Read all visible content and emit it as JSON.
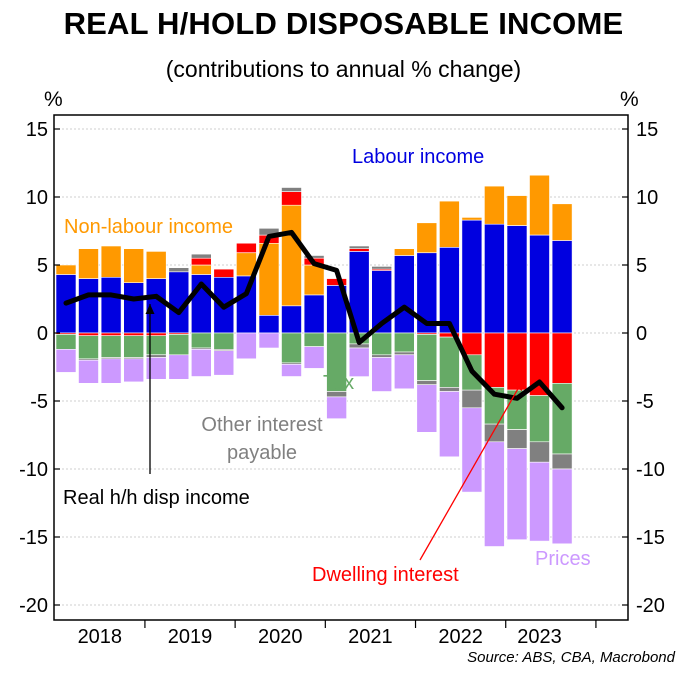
{
  "title": "REAL H/HOLD DISPOSABLE INCOME",
  "subtitle": "(contributions to annual % change)",
  "y_unit_left": "%",
  "y_unit_right": "%",
  "source": "Source: ABS, CBA, Macrobond",
  "colors": {
    "labour": "#0000e0",
    "non_labour": "#ff9900",
    "other_interest": "#808080",
    "tax": "#66aa66",
    "dwelling": "#ff0000",
    "prices": "#cc99ff",
    "line": "#000000"
  },
  "chart_data": {
    "type": "bar",
    "stacked": true,
    "title": "REAL H/HOLD DISPOSABLE INCOME",
    "subtitle": "(contributions to annual % change)",
    "ylabel": "%",
    "ylim": [
      -21,
      16
    ],
    "yticks": [
      15,
      10,
      5,
      0,
      -5,
      -10,
      -15,
      -20
    ],
    "ytick_labels": [
      "15",
      "10",
      "5",
      "0",
      "-5",
      "-10",
      "-15",
      "-20"
    ],
    "x_year_labels": [
      "2018",
      "2019",
      "2020",
      "2021",
      "2022",
      "2023"
    ],
    "quarters": [
      "2018Q1",
      "2018Q2",
      "2018Q3",
      "2018Q4",
      "2019Q1",
      "2019Q2",
      "2019Q3",
      "2019Q4",
      "2020Q1",
      "2020Q2",
      "2020Q3",
      "2020Q4",
      "2021Q1",
      "2021Q2",
      "2021Q3",
      "2021Q4",
      "2022Q1",
      "2022Q2",
      "2022Q3",
      "2022Q4",
      "2023Q1",
      "2023Q2",
      "2023Q3"
    ],
    "series": [
      {
        "name": "Labour income",
        "key": "labour",
        "values": [
          4.3,
          4.0,
          4.1,
          3.7,
          4.0,
          4.5,
          4.3,
          4.1,
          4.2,
          1.3,
          2.0,
          2.8,
          3.5,
          6.0,
          4.6,
          5.7,
          5.9,
          6.3,
          8.3,
          8.0,
          7.9,
          7.2,
          6.8
        ]
      },
      {
        "name": "Non-labour income",
        "key": "non_labour",
        "values": [
          0.7,
          2.2,
          2.3,
          2.5,
          2.0,
          0.0,
          0.7,
          0.0,
          1.7,
          5.3,
          7.4,
          2.2,
          0.0,
          0.0,
          0.0,
          0.5,
          2.2,
          3.4,
          0.2,
          2.8,
          2.2,
          4.4,
          2.7
        ]
      },
      {
        "name": "Dwelling interest",
        "key": "dwelling",
        "values": [
          -0.1,
          -0.2,
          -0.2,
          -0.2,
          -0.2,
          -0.1,
          0.5,
          0.6,
          0.7,
          0.6,
          1.0,
          0.5,
          0.5,
          0.2,
          0.1,
          0.0,
          -0.1,
          -0.3,
          -1.6,
          -4.0,
          -4.2,
          -4.6,
          -3.7
        ]
      },
      {
        "name": "Other interest payable",
        "key": "other_interest",
        "values": [
          0.0,
          0.0,
          0.0,
          0.0,
          0.0,
          0.3,
          0.3,
          0.0,
          0.0,
          0.5,
          0.3,
          0.2,
          0.0,
          0.2,
          0.2,
          0.0,
          0.0,
          0.0,
          0.0,
          0.0,
          0.0,
          0.0,
          0.0
        ]
      },
      {
        "name": "Tax",
        "key": "tax",
        "values": [
          -1.1,
          -1.7,
          -1.6,
          -1.6,
          -1.4,
          -1.5,
          -1.1,
          -1.2,
          0.0,
          0.0,
          -2.2,
          -1.0,
          -4.3,
          -0.8,
          -1.6,
          -1.4,
          -3.4,
          -3.7,
          -2.6,
          -2.7,
          -2.9,
          -3.4,
          -5.2
        ]
      },
      {
        "name": "Other interest payable",
        "key": "other_interest",
        "values": [
          0.0,
          -0.1,
          -0.1,
          -0.1,
          -0.2,
          0.0,
          -0.1,
          -0.1,
          0.0,
          0.0,
          -0.1,
          0.0,
          -0.4,
          -0.3,
          -0.2,
          -0.2,
          -0.3,
          -0.3,
          -1.3,
          -1.3,
          -1.4,
          -1.5,
          -1.1
        ]
      },
      {
        "name": "Prices",
        "key": "prices",
        "values": [
          -1.7,
          -1.7,
          -1.8,
          -1.7,
          -1.6,
          -1.8,
          -2.0,
          -1.8,
          -1.9,
          -1.1,
          -0.9,
          -1.6,
          -1.6,
          -2.1,
          -2.5,
          -2.5,
          -3.5,
          -4.8,
          -6.2,
          -7.7,
          -6.7,
          -5.8,
          -5.5
        ]
      }
    ],
    "line": {
      "name": "Real h/h disp income",
      "values": [
        2.2,
        2.8,
        2.8,
        2.5,
        2.7,
        1.5,
        3.6,
        1.9,
        2.9,
        7.1,
        7.4,
        5.1,
        4.6,
        -0.7,
        0.7,
        1.9,
        0.7,
        0.7,
        -2.8,
        -4.5,
        -4.8,
        -3.6,
        -5.5
      ]
    },
    "annotations": {
      "labour": "Labour income",
      "non_labour": "Non-labour income",
      "tax": "Tax",
      "other_interest_line1": "Other interest",
      "other_interest_line2": "payable",
      "line": "Real h/h disp income",
      "dwelling": "Dwelling interest",
      "prices": "Prices"
    }
  }
}
